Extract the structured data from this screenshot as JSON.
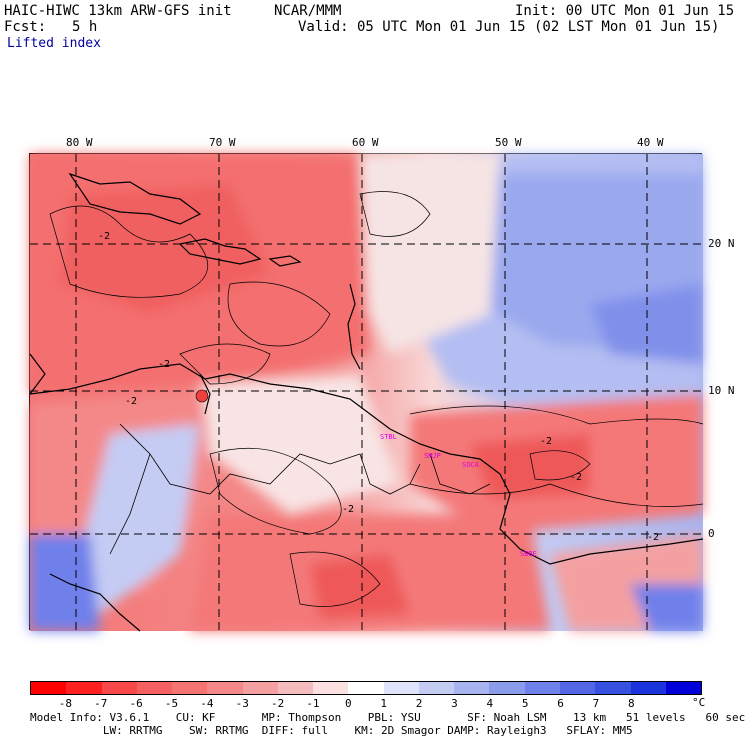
{
  "header": {
    "model": "HAIC-HIWC 13km ARW-GFS init",
    "org": "NCAR/MMM",
    "init": "Init: 00 UTC Mon 01 Jun 15",
    "fcst_label": "Fcst:",
    "fcst_value": "5 h",
    "valid": "Valid: 05 UTC Mon 01 Jun 15 (02 LST Mon 01 Jun 15)",
    "field": "Lifted index"
  },
  "lon_labels": [
    "80 W",
    "70 W",
    "60 W",
    "50 W",
    "40 W"
  ],
  "lat_labels": [
    "20 N",
    "10 N",
    "0"
  ],
  "contour_labels": [
    "-2",
    "-2",
    "-2",
    "-2",
    "-2",
    "-2",
    "-2"
  ],
  "stations": [
    "STBL",
    "SMJP",
    "SOCA",
    "SBBE"
  ],
  "colorbar": {
    "colors": [
      "#ff0000",
      "#ff2020",
      "#f84848",
      "#f56060",
      "#f47474",
      "#f48888",
      "#f4a0a0",
      "#f4bcbc",
      "#fae0e0",
      "#ffffff",
      "#e0e4fa",
      "#c4ccf4",
      "#a8b4f0",
      "#8c9ced",
      "#7080ea",
      "#5468e6",
      "#3850e0",
      "#1c34dc",
      "#0000d8"
    ],
    "labels": [
      "-8",
      "-7",
      "-6",
      "-5",
      "-4",
      "-3",
      "-2",
      "-1",
      "0",
      "1",
      "2",
      "3",
      "4",
      "5",
      "6",
      "7",
      "8"
    ],
    "unit": "°C"
  },
  "footer": {
    "line1": "Model Info: V3.6.1    CU: KF       MP: Thompson    PBL: YSU       SF: Noah LSM    13 km   51 levels   60 sec",
    "line2": "           LW: RRTMG    SW: RRTMG  DIFF: full    KM: 2D Smagor DAMP: Rayleigh3   SFLAY: MM5"
  }
}
